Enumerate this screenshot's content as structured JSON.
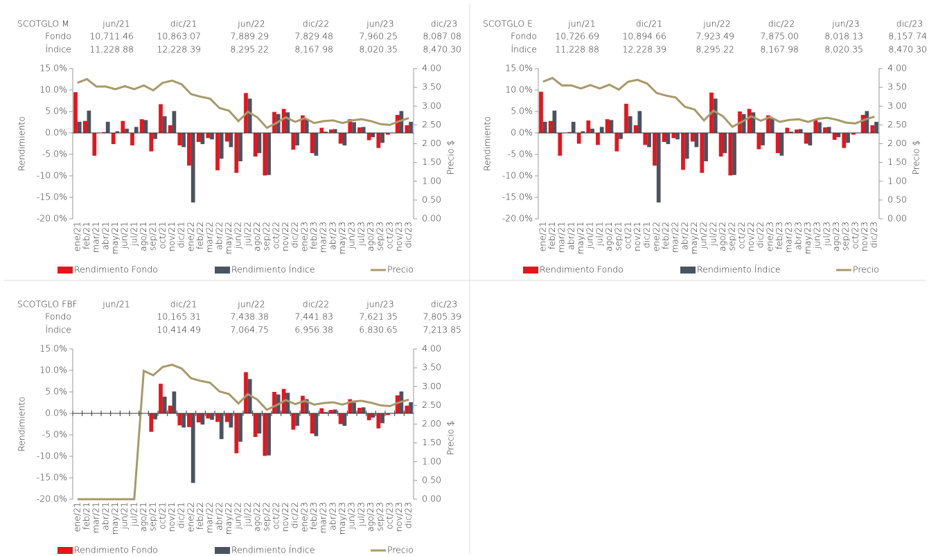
{
  "chart_data": [
    {
      "type": "bar",
      "table": {
        "label": "SCOTGLO M",
        "columns": [
          "jun/21",
          "dic/21",
          "jun/22",
          "dic/22",
          "jun/23",
          "dic/23"
        ],
        "rows": [
          {
            "label": "Fondo",
            "values": [
              "10,711.46",
              "10,863.07",
              "7,889.29",
              "7,829.48",
              "7,960.25",
              "8,087.08"
            ]
          },
          {
            "label": "Índice",
            "values": [
              "11,228.88",
              "12,228.39",
              "8,295.22",
              "8,167.98",
              "8,020.35",
              "8,470.30"
            ]
          }
        ]
      },
      "categories": [
        "ene/21",
        "feb/21",
        "mar/21",
        "abr/21",
        "may/21",
        "jun/21",
        "jul/21",
        "ago/21",
        "sep/21",
        "oct/21",
        "nov/21",
        "dic/21",
        "ene/22",
        "feb/22",
        "mar/22",
        "abr/22",
        "may/22",
        "jun/22",
        "jul/22",
        "ago/22",
        "sep/22",
        "oct/22",
        "nov/22",
        "dic/22",
        "ene/23",
        "feb/23",
        "mar/23",
        "abr/23",
        "may/23",
        "jun/23",
        "jul/23",
        "ago/23",
        "sep/23",
        "oct/23",
        "nov/23",
        "dic/23"
      ],
      "series": [
        {
          "name": "Rendimiento Fondo",
          "color": "#e8141c",
          "values": [
            9.5,
            2.8,
            -5.3,
            0.2,
            -2.6,
            2.8,
            -2.9,
            3.2,
            -4.3,
            6.7,
            1.8,
            -2.9,
            -7.6,
            -2.1,
            -1.2,
            -8.7,
            -2.0,
            -9.3,
            9.3,
            -5.5,
            -9.9,
            4.9,
            5.6,
            -3.9,
            4.1,
            -4.7,
            1.2,
            0.8,
            -2.5,
            3.2,
            1.3,
            -1.7,
            -3.5,
            -0.4,
            4.2,
            1.8
          ]
        },
        {
          "name": "Rendimiento Índice",
          "color": "#4a5360",
          "values": [
            2.6,
            5.2,
            0.1,
            2.6,
            0.4,
            1.0,
            1.4,
            3.0,
            -1.4,
            3.9,
            5.1,
            -3.3,
            -16.2,
            -2.6,
            -1.5,
            -6.0,
            -3.3,
            -6.6,
            8.0,
            -4.7,
            -9.8,
            4.4,
            4.8,
            -2.9,
            3.3,
            -5.3,
            0.3,
            0.9,
            -2.9,
            2.5,
            1.4,
            -1.0,
            -2.3,
            0.1,
            5.1,
            2.6
          ]
        },
        {
          "name": "Precio",
          "color": "#a8996a",
          "type": "line",
          "axis": "y2",
          "values": [
            3.62,
            3.72,
            3.52,
            3.52,
            3.45,
            3.53,
            3.45,
            3.55,
            3.42,
            3.62,
            3.68,
            3.58,
            3.32,
            3.25,
            3.2,
            2.95,
            2.88,
            2.6,
            2.85,
            2.7,
            2.42,
            2.55,
            2.7,
            2.58,
            2.68,
            2.55,
            2.6,
            2.62,
            2.55,
            2.62,
            2.65,
            2.6,
            2.52,
            2.5,
            2.6,
            2.68
          ]
        }
      ],
      "ylim": [
        -20,
        15
      ],
      "yticks": [
        {
          "value": -20,
          "label": "-20.0%"
        },
        {
          "value": -15,
          "label": "-15.0%"
        },
        {
          "value": -10,
          "label": "-10.0%"
        },
        {
          "value": -5,
          "label": "-5.0%"
        },
        {
          "value": 0,
          "label": "0.0%"
        },
        {
          "value": 5,
          "label": "5.0%"
        },
        {
          "value": 10,
          "label": "10.0%"
        },
        {
          "value": 15,
          "label": "15.0%"
        }
      ],
      "y2lim": [
        0,
        4
      ],
      "y2ticks": [
        {
          "value": 0,
          "label": "0.00"
        },
        {
          "value": 0.5,
          "label": "0.50"
        },
        {
          "value": 1,
          "label": "1.00"
        },
        {
          "value": 1.5,
          "label": "1.50"
        },
        {
          "value": 2,
          "label": "2.00"
        },
        {
          "value": 2.5,
          "label": "2.50"
        },
        {
          "value": 3,
          "label": "3.00"
        },
        {
          "value": 3.5,
          "label": "3.50"
        },
        {
          "value": 4,
          "label": "4.00"
        }
      ],
      "ylabel": "Rendimiento",
      "y2label": "Precio $",
      "category_ticks": false
    },
    {
      "type": "bar",
      "table": {
        "label": "SCOTGLO E",
        "columns": [
          "jun/21",
          "dic/21",
          "jun/22",
          "dic/22",
          "jun/23",
          "dic/23"
        ],
        "rows": [
          {
            "label": "Fondo",
            "values": [
              "10,726.69",
              "10,894.66",
              "7,923.49",
              "7,875.00",
              "8,018.13",
              "8,157.74"
            ]
          },
          {
            "label": "Índice",
            "values": [
              "11,228.88",
              "12,228.39",
              "8,295.22",
              "8,167.98",
              "8,020.35",
              "8,470.30"
            ]
          }
        ]
      },
      "categories": [
        "ene/21",
        "feb/21",
        "mar/21",
        "abr/21",
        "may/21",
        "jun/21",
        "jul/21",
        "ago/21",
        "sep/21",
        "oct/21",
        "nov/21",
        "dic/21",
        "ene/22",
        "feb/22",
        "mar/22",
        "abr/22",
        "may/22",
        "jun/22",
        "jul/22",
        "ago/22",
        "sep/22",
        "oct/22",
        "nov/22",
        "dic/22",
        "ene/23",
        "feb/23",
        "mar/23",
        "abr/23",
        "may/23",
        "jun/23",
        "jul/23",
        "ago/23",
        "sep/23",
        "oct/23",
        "nov/23",
        "dic/23"
      ],
      "series": [
        {
          "name": "Rendimiento Fondo",
          "color": "#e8141c",
          "values": [
            9.6,
            2.8,
            -5.3,
            0.2,
            -2.5,
            2.9,
            -2.8,
            3.2,
            -4.3,
            6.8,
            1.8,
            -2.8,
            -7.6,
            -2.1,
            -1.2,
            -8.6,
            -2.0,
            -9.3,
            9.4,
            -5.5,
            -9.9,
            5.0,
            5.6,
            -3.8,
            4.1,
            -4.7,
            1.2,
            0.8,
            -2.5,
            3.2,
            1.3,
            -1.6,
            -3.5,
            -0.4,
            4.2,
            1.8
          ]
        },
        {
          "name": "Rendimiento Índice",
          "color": "#4a5360",
          "values": [
            2.6,
            5.2,
            0.1,
            2.6,
            0.4,
            1.0,
            1.4,
            3.0,
            -1.4,
            3.9,
            5.1,
            -3.3,
            -16.2,
            -2.6,
            -1.5,
            -6.0,
            -3.3,
            -6.6,
            8.0,
            -4.7,
            -9.8,
            4.4,
            4.8,
            -2.9,
            3.3,
            -5.3,
            0.3,
            0.9,
            -2.9,
            2.5,
            1.4,
            -1.0,
            -2.3,
            0.1,
            5.1,
            2.6
          ]
        },
        {
          "name": "Precio",
          "color": "#a8996a",
          "type": "line",
          "axis": "y2",
          "values": [
            3.65,
            3.75,
            3.55,
            3.55,
            3.47,
            3.56,
            3.47,
            3.57,
            3.44,
            3.65,
            3.7,
            3.6,
            3.35,
            3.28,
            3.23,
            2.98,
            2.91,
            2.62,
            2.88,
            2.73,
            2.45,
            2.58,
            2.73,
            2.61,
            2.71,
            2.58,
            2.63,
            2.65,
            2.58,
            2.66,
            2.69,
            2.64,
            2.56,
            2.54,
            2.64,
            2.72
          ]
        }
      ],
      "ylim": [
        -20,
        15
      ],
      "yticks": [
        {
          "value": -20,
          "label": "-20.0%"
        },
        {
          "value": -15,
          "label": "-15.0%"
        },
        {
          "value": -10,
          "label": "-10.0%"
        },
        {
          "value": -5,
          "label": "-5.0%"
        },
        {
          "value": 0,
          "label": "0.0%"
        },
        {
          "value": 5,
          "label": "5.0%"
        },
        {
          "value": 10,
          "label": "10.0%"
        },
        {
          "value": 15,
          "label": "15.0%"
        }
      ],
      "y2lim": [
        0,
        4
      ],
      "y2ticks": [
        {
          "value": 0,
          "label": "0.00"
        },
        {
          "value": 0.5,
          "label": "0.50"
        },
        {
          "value": 1,
          "label": "1.00"
        },
        {
          "value": 1.5,
          "label": "1.50"
        },
        {
          "value": 2,
          "label": "2.00"
        },
        {
          "value": 2.5,
          "label": "2.50"
        },
        {
          "value": 3,
          "label": "3.00"
        },
        {
          "value": 3.5,
          "label": "3.50"
        },
        {
          "value": 4,
          "label": "4.00"
        }
      ],
      "ylabel": "Rendimiento",
      "y2label": "Precio $",
      "category_ticks": false
    },
    {
      "type": "bar",
      "table": {
        "label": "SCOTGLO FBF",
        "columns": [
          "jun/21",
          "dic/21",
          "jun/22",
          "dic/22",
          "jun/23",
          "dic/23"
        ],
        "rows": [
          {
            "label": "Fondo",
            "values": [
              null,
              "10,165.31",
              "7,438.38",
              "7,441.83",
              "7,621.35",
              "7,805.39"
            ]
          },
          {
            "label": "Índice",
            "values": [
              null,
              "10,414.49",
              "7,064.75",
              "6,956.38",
              "6,830.65",
              "7,213.85"
            ]
          }
        ]
      },
      "categories": [
        "ene/21",
        "feb/21",
        "mar/21",
        "abr/21",
        "may/21",
        "jun/21",
        "jul/21",
        "ago/21",
        "sep/21",
        "oct/21",
        "nov/21",
        "dic/21",
        "ene/22",
        "feb/22",
        "mar/22",
        "abr/22",
        "may/22",
        "jun/22",
        "jul/22",
        "ago/22",
        "sep/22",
        "oct/22",
        "nov/22",
        "dic/22",
        "ene/23",
        "feb/23",
        "mar/23",
        "abr/23",
        "may/23",
        "jun/23",
        "jul/23",
        "ago/23",
        "sep/23",
        "oct/23",
        "nov/23",
        "dic/23"
      ],
      "series": [
        {
          "name": "Rendimiento Fondo",
          "color": "#e8141c",
          "values": [
            null,
            null,
            null,
            null,
            null,
            null,
            null,
            null,
            -4.3,
            6.9,
            1.8,
            -2.8,
            -3.2,
            -2.1,
            -1.2,
            -2.0,
            -2.0,
            -9.3,
            9.6,
            -5.5,
            -9.9,
            5.0,
            5.7,
            -3.8,
            4.1,
            -4.7,
            1.2,
            0.8,
            -2.5,
            3.3,
            1.3,
            -1.6,
            -3.5,
            -0.4,
            4.2,
            1.8
          ]
        },
        {
          "name": "Rendimiento Índice",
          "color": "#4a5360",
          "values": [
            null,
            null,
            null,
            null,
            null,
            null,
            null,
            null,
            -1.4,
            3.9,
            5.1,
            -3.3,
            -16.2,
            -2.6,
            -1.5,
            -6.0,
            -3.3,
            -6.6,
            8.0,
            -4.7,
            -9.8,
            4.4,
            4.8,
            -2.9,
            3.3,
            -5.3,
            0.3,
            0.9,
            -2.9,
            2.5,
            1.4,
            -1.0,
            -2.3,
            0.1,
            5.1,
            2.6
          ]
        },
        {
          "name": "Precio",
          "color": "#a8996a",
          "type": "line",
          "axis": "y2",
          "values": [
            0,
            0,
            0,
            0,
            0,
            0,
            0,
            3.42,
            3.3,
            3.52,
            3.58,
            3.48,
            3.22,
            3.15,
            3.1,
            2.87,
            2.8,
            2.55,
            2.8,
            2.65,
            2.38,
            2.5,
            2.64,
            2.53,
            2.62,
            2.52,
            2.56,
            2.58,
            2.52,
            2.6,
            2.62,
            2.57,
            2.5,
            2.48,
            2.58,
            2.65
          ]
        }
      ],
      "ylim": [
        -20,
        15
      ],
      "yticks": [
        {
          "value": -20,
          "label": "-20.0%"
        },
        {
          "value": -15,
          "label": "-15.0%"
        },
        {
          "value": -10,
          "label": "-10.0%"
        },
        {
          "value": -5,
          "label": "-5.0%"
        },
        {
          "value": 0,
          "label": "0.0%"
        },
        {
          "value": 5,
          "label": "5.0%"
        },
        {
          "value": 10,
          "label": "10.0%"
        },
        {
          "value": 15,
          "label": "15.0%"
        }
      ],
      "y2lim": [
        0,
        4
      ],
      "y2ticks": [
        {
          "value": 0,
          "label": "0.00"
        },
        {
          "value": 0.5,
          "label": "0.50"
        },
        {
          "value": 1,
          "label": "1.00"
        },
        {
          "value": 1.5,
          "label": "1.50"
        },
        {
          "value": 2,
          "label": "2.00"
        },
        {
          "value": 2.5,
          "label": "2.50"
        },
        {
          "value": 3,
          "label": "3.00"
        },
        {
          "value": 3.5,
          "label": "3.50"
        },
        {
          "value": 4,
          "label": "4.00"
        }
      ],
      "ylabel": "Rendimiento",
      "y2label": "Precio $",
      "category_ticks": true
    }
  ]
}
